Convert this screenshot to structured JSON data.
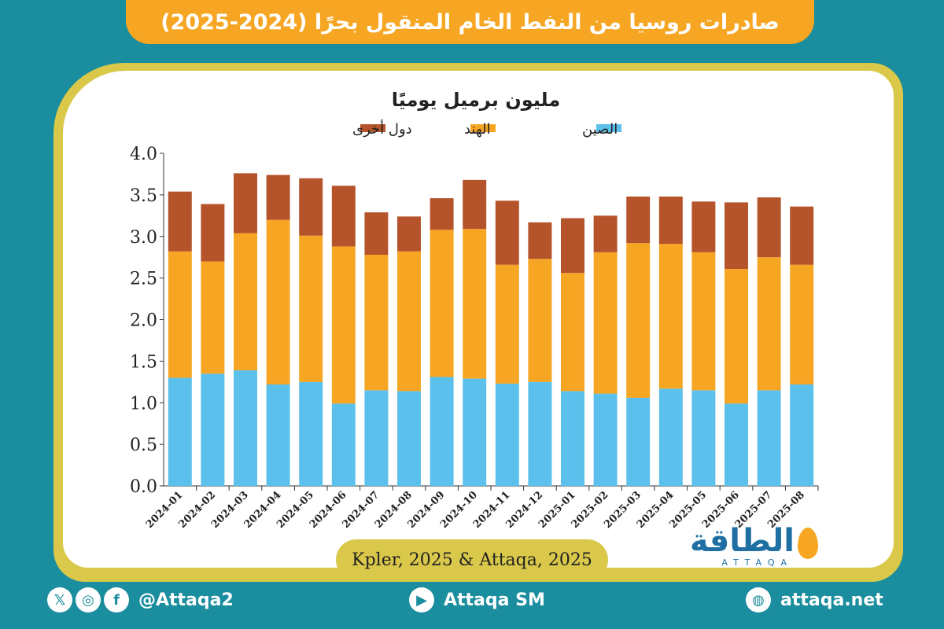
{
  "header": {
    "title": "صادرات روسيا من النفط الخام المنقول بحرًا (2024-2025)"
  },
  "chart_data": {
    "type": "bar",
    "stacked": true,
    "title": "مليون برميل يوميًا",
    "categories": [
      "2024-01",
      "2024-02",
      "2024-03",
      "2024-04",
      "2024-05",
      "2024-06",
      "2024-07",
      "2024-08",
      "2024-09",
      "2024-10",
      "2024-11",
      "2024-12",
      "2025-01",
      "2025-02",
      "2025-03",
      "2025-04",
      "2025-05",
      "2025-06",
      "2025-07",
      "2025-08"
    ],
    "series": [
      {
        "name": "الصين",
        "color": "#5bc0eb",
        "values": [
          1.3,
          1.35,
          1.39,
          1.22,
          1.25,
          0.99,
          1.15,
          1.14,
          1.31,
          1.29,
          1.23,
          1.25,
          1.14,
          1.11,
          1.06,
          1.17,
          1.15,
          0.99,
          1.15,
          1.22
        ]
      },
      {
        "name": "الهند",
        "color": "#f6a623",
        "values": [
          1.52,
          1.35,
          1.65,
          1.98,
          1.76,
          1.89,
          1.63,
          1.68,
          1.77,
          1.8,
          1.43,
          1.48,
          1.42,
          1.7,
          1.86,
          1.74,
          1.66,
          1.62,
          1.6,
          1.44
        ]
      },
      {
        "name": "دول أخرى",
        "color": "#b5532a",
        "values": [
          0.72,
          0.69,
          0.72,
          0.54,
          0.69,
          0.73,
          0.51,
          0.42,
          0.38,
          0.59,
          0.77,
          0.44,
          0.66,
          0.44,
          0.56,
          0.57,
          0.61,
          0.8,
          0.72,
          0.7
        ]
      }
    ],
    "ylim": [
      0,
      4.0
    ],
    "yticks": [
      "0.0",
      "0.5",
      "1.0",
      "1.5",
      "2.0",
      "2.5",
      "3.0",
      "3.5",
      "4.0"
    ],
    "legend_position": "top"
  },
  "source": {
    "text": "Kpler, 2025 & Attaqa, 2025"
  },
  "logo": {
    "arabic": "الطاقة",
    "english": "ATTAQA"
  },
  "footer": {
    "social_handle": "@Attaqa2",
    "youtube": "Attaqa SM",
    "website": "attaqa.net"
  }
}
